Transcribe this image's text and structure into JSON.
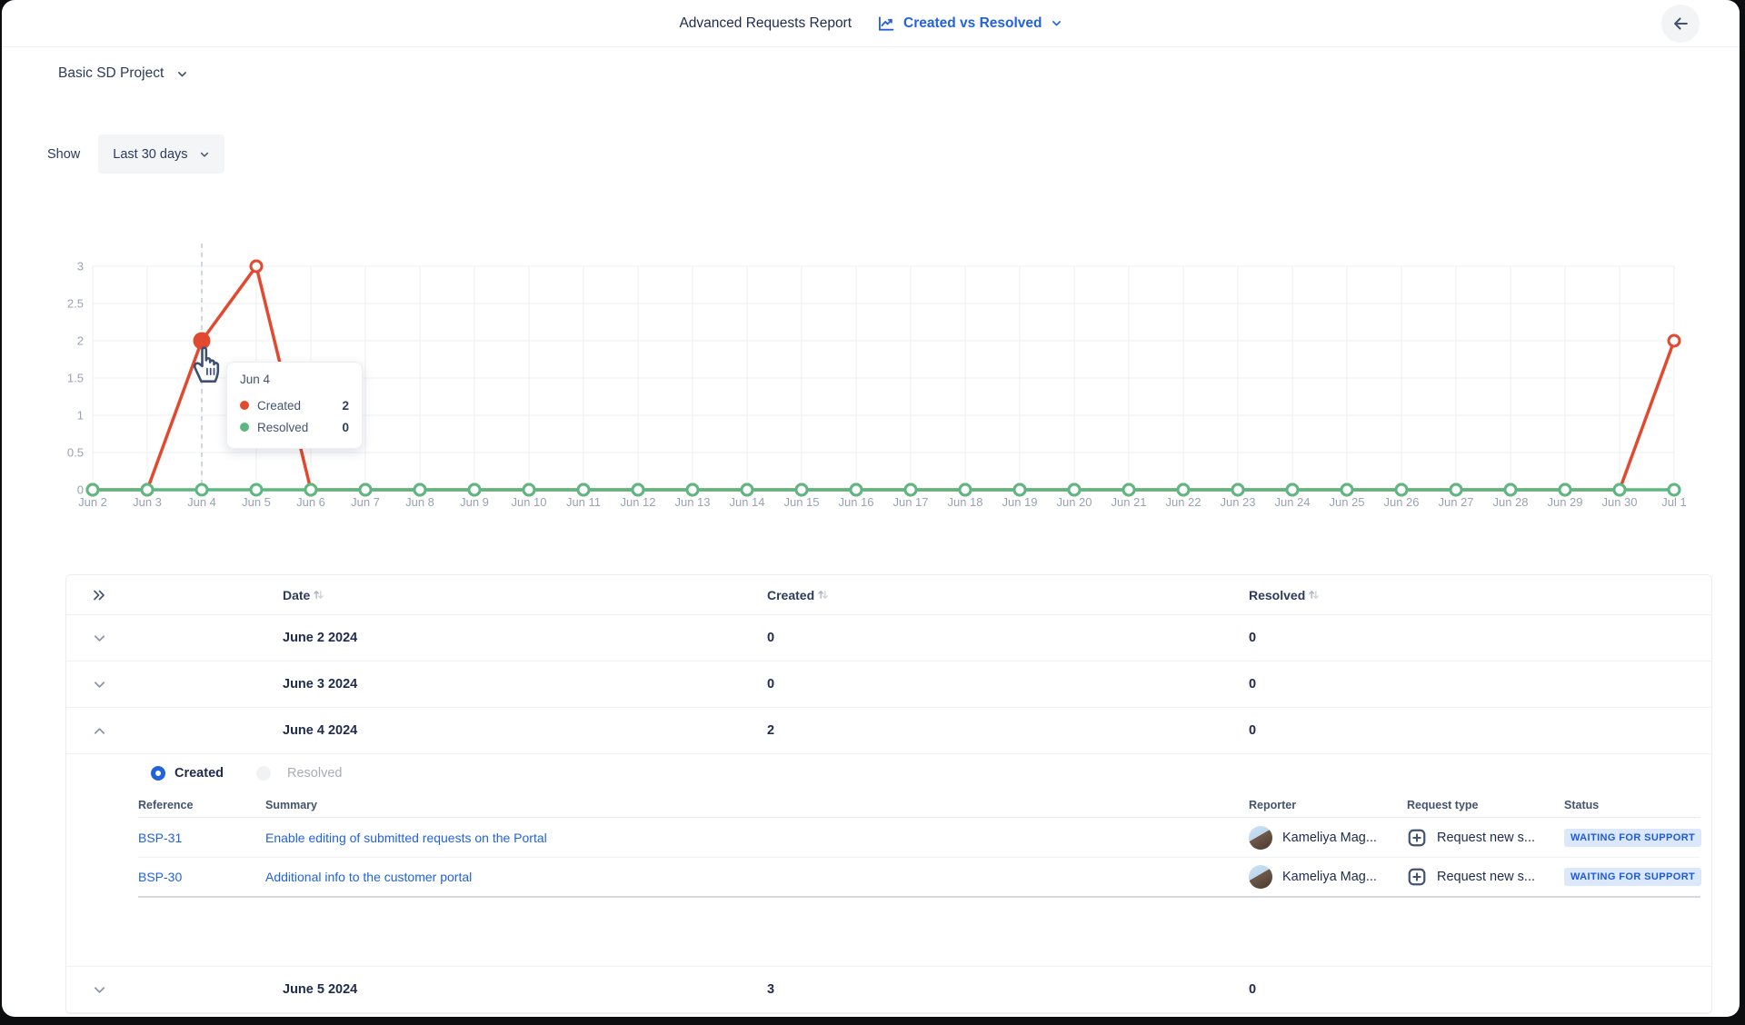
{
  "header": {
    "title": "Advanced Requests Report",
    "report_selector": "Created vs Resolved"
  },
  "project_selector": {
    "label": "Basic SD Project"
  },
  "filters": {
    "show_label": "Show",
    "range_value": "Last 30 days"
  },
  "chart_data": {
    "type": "line",
    "x": [
      "Jun 2",
      "Jun 3",
      "Jun 4",
      "Jun 5",
      "Jun 6",
      "Jun 7",
      "Jun 8",
      "Jun 9",
      "Jun 10",
      "Jun 11",
      "Jun 12",
      "Jun 13",
      "Jun 14",
      "Jun 15",
      "Jun 16",
      "Jun 17",
      "Jun 18",
      "Jun 19",
      "Jun 20",
      "Jun 21",
      "Jun 22",
      "Jun 23",
      "Jun 24",
      "Jun 25",
      "Jun 26",
      "Jun 27",
      "Jun 28",
      "Jun 29",
      "Jun 30",
      "Jul 1"
    ],
    "series": [
      {
        "name": "Created",
        "color": "#e2492f",
        "values": [
          0,
          0,
          2,
          3,
          0,
          0,
          0,
          0,
          0,
          0,
          0,
          0,
          0,
          0,
          0,
          0,
          0,
          0,
          0,
          0,
          0,
          0,
          0,
          0,
          0,
          0,
          0,
          0,
          0,
          2
        ]
      },
      {
        "name": "Resolved",
        "color": "#5cb87f",
        "values": [
          0,
          0,
          0,
          0,
          0,
          0,
          0,
          0,
          0,
          0,
          0,
          0,
          0,
          0,
          0,
          0,
          0,
          0,
          0,
          0,
          0,
          0,
          0,
          0,
          0,
          0,
          0,
          0,
          0,
          0
        ]
      }
    ],
    "ylim": [
      0,
      3
    ],
    "ytick_labels": [
      "0",
      "0.5",
      "1",
      "1.5",
      "2",
      "2.5",
      "3"
    ],
    "grid": true,
    "legend_position": "none",
    "hover": {
      "index": 2,
      "title": "Jun 4",
      "entries": [
        {
          "series": "Created",
          "value": 2
        },
        {
          "series": "Resolved",
          "value": 0
        }
      ]
    }
  },
  "table": {
    "columns": {
      "date": "Date",
      "created": "Created",
      "resolved": "Resolved"
    },
    "rows": [
      {
        "date": "June 2 2024",
        "created": 0,
        "resolved": 0
      },
      {
        "date": "June 3 2024",
        "created": 0,
        "resolved": 0
      },
      {
        "date": "June 4 2024",
        "created": 2,
        "resolved": 0
      },
      {
        "date": "June 5 2024",
        "created": 3,
        "resolved": 0
      }
    ],
    "expanded_detail": {
      "radio_options": [
        {
          "label": "Created",
          "selected": true
        },
        {
          "label": "Resolved",
          "selected": false
        }
      ],
      "columns": {
        "reference": "Reference",
        "summary": "Summary",
        "reporter": "Reporter",
        "request_type": "Request type",
        "status": "Status"
      },
      "issues": [
        {
          "reference": "BSP-31",
          "summary": "Enable editing of submitted requests on the Portal",
          "reporter": "Kameliya Mag...",
          "request_type": "Request new s...",
          "status": "WAITING FOR SUPPORT"
        },
        {
          "reference": "BSP-30",
          "summary": "Additional info to the customer portal",
          "reporter": "Kameliya Mag...",
          "request_type": "Request new s...",
          "status": "WAITING FOR SUPPORT"
        }
      ]
    }
  }
}
